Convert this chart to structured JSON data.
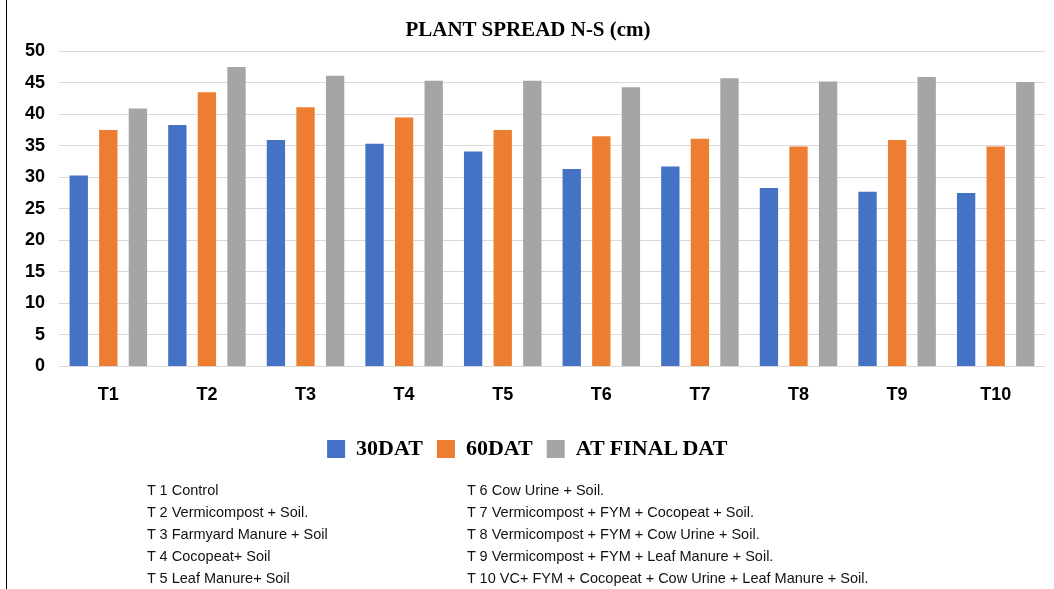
{
  "chart_data": {
    "type": "bar",
    "title": "PLANT SPREAD N-S (cm)",
    "categories": [
      "T1",
      "T2",
      "T3",
      "T4",
      "T5",
      "T6",
      "T7",
      "T8",
      "T9",
      "T10"
    ],
    "series": [
      {
        "name": "30DAT",
        "color": "#4472c4",
        "values": [
          30.3,
          38.3,
          35.9,
          35.3,
          34.1,
          31.3,
          31.7,
          28.3,
          27.7,
          27.5
        ]
      },
      {
        "name": "60DAT",
        "color": "#ed7d31",
        "values": [
          37.5,
          43.5,
          41.1,
          39.5,
          37.5,
          36.5,
          36.1,
          34.9,
          35.9,
          34.9
        ]
      },
      {
        "name": "AT FINAL DAT",
        "color": "#a5a5a5",
        "values": [
          40.9,
          47.5,
          46.1,
          45.3,
          45.3,
          44.3,
          45.7,
          45.2,
          45.9,
          45.1
        ]
      }
    ],
    "ylim": [
      0,
      50
    ],
    "yticks": [
      0,
      5,
      10,
      15,
      20,
      25,
      30,
      35,
      40,
      45,
      50
    ],
    "grid": "y",
    "legend": "bottom",
    "annotations": [
      "T 1 Control",
      "T 2 Vermicompost + Soil.",
      "T 3 Farmyard Manure + Soil",
      "T 4 Cocopeat+ Soil",
      "T 5 Leaf Manure+ Soil",
      "T 6 Cow Urine + Soil.",
      "T 7 Vermicompost + FYM + Cocopeat + Soil.",
      "T 8 Vermicompost + FYM + Cow Urine + Soil.",
      "T 9 Vermicompost + FYM + Leaf Manure + Soil.",
      "T 10 VC+ FYM + Cocopeat + Cow Urine + Leaf Manure + Soil."
    ]
  }
}
